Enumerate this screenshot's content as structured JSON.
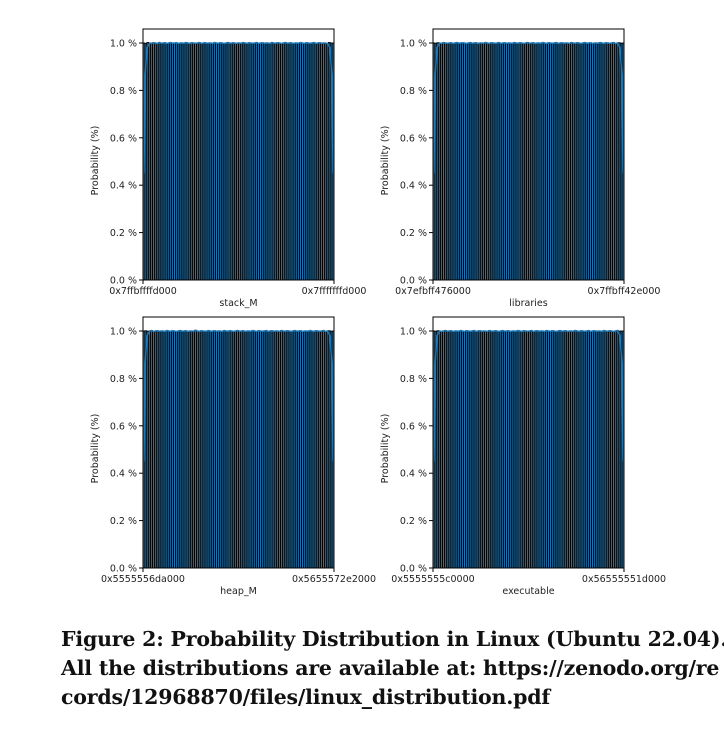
{
  "chart_data": [
    {
      "type": "bar",
      "xlabel": "stack_M",
      "ylabel": "Probability (%)",
      "x_tick_labels": [
        "0x7ffbffffd000",
        "0x7fffffffd000"
      ],
      "y_tick_labels": [
        "0.0 %",
        "0.2 %",
        "0.4 %",
        "0.6 %",
        "0.8 %",
        "1.0 %"
      ],
      "ylim": [
        0,
        1.0
      ],
      "bins": 100,
      "values": [
        1.0,
        0.998,
        1.002,
        1.0,
        0.999,
        1.001,
        1.0,
        0.997,
        1.002,
        0.999,
        1.0,
        1.001,
        0.998,
        1.0,
        1.002,
        0.999,
        1.0,
        1.001,
        0.998,
        1.0,
        1.0,
        0.999,
        1.002,
        1.0,
        0.998,
        1.001,
        1.0,
        0.999,
        1.0,
        1.002,
        0.998,
        1.0,
        1.001,
        0.999,
        1.0,
        1.0,
        0.998,
        1.002,
        1.0,
        0.999,
        1.001,
        1.0,
        0.998,
        1.0,
        1.002,
        0.999,
        1.0,
        1.001,
        0.998,
        1.0,
        1.0,
        0.999,
        1.002,
        1.0,
        0.998,
        1.001,
        1.0,
        0.999,
        1.0,
        1.002,
        0.998,
        1.0,
        1.001,
        0.999,
        1.0,
        1.0,
        0.998,
        1.002,
        1.0,
        0.999,
        1.001,
        1.0,
        0.998,
        1.0,
        1.002,
        0.999,
        1.0,
        1.001,
        0.998,
        1.0,
        1.0,
        0.999,
        1.002,
        1.0,
        0.998,
        1.001,
        1.0,
        0.999,
        1.0,
        1.002,
        0.998,
        1.0,
        1.001,
        0.999,
        1.0,
        1.0,
        0.998,
        1.002,
        1.0,
        1.0
      ],
      "bar_color": "#1f77b4",
      "edge_color": "#000000",
      "line_color": "#1f77b4"
    },
    {
      "type": "bar",
      "xlabel": "libraries",
      "ylabel": "Probability (%)",
      "x_tick_labels": [
        "0x7efbff476000",
        "0x7ffbff42e000"
      ],
      "y_tick_labels": [
        "0.0 %",
        "0.2 %",
        "0.4 %",
        "0.6 %",
        "0.8 %",
        "1.0 %"
      ],
      "ylim": [
        0,
        1.0
      ],
      "bins": 100,
      "values": [
        1.0,
        0.999,
        1.001,
        1.0,
        0.998,
        1.002,
        1.0,
        0.999,
        1.0,
        1.001,
        0.998,
        1.0,
        1.002,
        0.999,
        1.0,
        1.001,
        1.0,
        0.998,
        1.0,
        1.002,
        0.999,
        1.0,
        1.001,
        0.998,
        1.0,
        1.0,
        0.999,
        1.002,
        1.0,
        0.998,
        1.001,
        1.0,
        0.999,
        1.0,
        1.002,
        0.998,
        1.0,
        1.001,
        0.999,
        1.0,
        1.0,
        0.998,
        1.002,
        1.0,
        0.999,
        1.001,
        1.0,
        0.998,
        1.0,
        1.002,
        0.999,
        1.0,
        1.001,
        0.998,
        1.0,
        1.0,
        0.999,
        1.002,
        1.0,
        0.998,
        1.001,
        1.0,
        0.999,
        1.0,
        1.002,
        0.998,
        1.0,
        1.001,
        0.999,
        1.0,
        1.0,
        0.998,
        1.002,
        1.0,
        0.999,
        1.001,
        1.0,
        0.998,
        1.0,
        1.002,
        0.999,
        1.0,
        1.001,
        0.998,
        1.0,
        1.0,
        0.999,
        1.002,
        1.0,
        0.998,
        1.001,
        1.0,
        0.999,
        1.0,
        1.002,
        0.998,
        1.0,
        1.001,
        0.999,
        1.0
      ],
      "bar_color": "#1f77b4",
      "edge_color": "#000000",
      "line_color": "#1f77b4"
    },
    {
      "type": "bar",
      "xlabel": "heap_M",
      "ylabel": "Probability (%)",
      "x_tick_labels": [
        "0x5555556da000",
        "0x5655572e2000"
      ],
      "y_tick_labels": [
        "0.0 %",
        "0.2 %",
        "0.4 %",
        "0.6 %",
        "0.8 %",
        "1.0 %"
      ],
      "ylim": [
        0,
        1.0
      ],
      "bins": 100,
      "values": [
        1.0,
        1.001,
        0.999,
        1.0,
        1.002,
        0.998,
        1.0,
        1.001,
        0.999,
        1.0,
        1.0,
        0.998,
        1.002,
        1.0,
        0.999,
        1.001,
        1.0,
        0.998,
        1.0,
        1.002,
        0.999,
        1.0,
        1.001,
        0.998,
        1.0,
        1.0,
        0.999,
        1.003,
        1.0,
        0.998,
        1.001,
        1.0,
        0.999,
        1.0,
        1.002,
        0.998,
        1.0,
        1.001,
        0.999,
        1.0,
        1.0,
        0.998,
        1.002,
        1.0,
        0.999,
        1.001,
        1.0,
        0.998,
        1.0,
        1.002,
        0.999,
        1.0,
        1.001,
        0.998,
        1.0,
        1.0,
        0.999,
        1.002,
        1.0,
        0.998,
        1.001,
        1.0,
        0.999,
        1.0,
        1.002,
        0.998,
        1.0,
        1.001,
        0.999,
        1.0,
        1.0,
        0.998,
        1.002,
        1.0,
        0.999,
        1.001,
        1.0,
        0.998,
        1.0,
        1.002,
        0.999,
        1.0,
        1.001,
        0.998,
        1.0,
        1.0,
        0.999,
        1.002,
        1.0,
        0.998,
        1.001,
        1.0,
        0.999,
        1.0,
        1.002,
        0.998,
        1.0,
        1.001,
        0.999,
        1.0
      ],
      "bar_color": "#1f77b4",
      "edge_color": "#000000",
      "line_color": "#1f77b4"
    },
    {
      "type": "bar",
      "xlabel": "executable",
      "ylabel": "Probability (%)",
      "x_tick_labels": [
        "0x5555555c0000",
        "0x56555551d000"
      ],
      "y_tick_labels": [
        "0.0 %",
        "0.2 %",
        "0.4 %",
        "0.6 %",
        "0.8 %",
        "1.0 %"
      ],
      "ylim": [
        0,
        1.0
      ],
      "bins": 100,
      "values": [
        1.0,
        0.999,
        1.001,
        1.0,
        0.998,
        1.0,
        1.002,
        0.999,
        1.0,
        1.001,
        0.998,
        1.0,
        1.0,
        0.999,
        1.002,
        1.0,
        0.998,
        1.001,
        1.0,
        0.999,
        1.0,
        1.002,
        0.998,
        1.0,
        1.001,
        0.999,
        1.0,
        1.0,
        0.998,
        1.002,
        1.0,
        0.999,
        1.001,
        1.0,
        0.998,
        1.0,
        1.002,
        0.999,
        1.0,
        1.001,
        0.998,
        1.0,
        1.0,
        0.999,
        1.002,
        1.0,
        0.998,
        1.001,
        1.0,
        0.999,
        1.0,
        1.002,
        0.998,
        1.0,
        1.001,
        0.999,
        1.0,
        1.0,
        0.998,
        1.002,
        1.0,
        0.999,
        1.001,
        1.0,
        0.998,
        1.0,
        1.002,
        0.999,
        1.0,
        1.001,
        0.998,
        1.0,
        1.0,
        0.999,
        1.002,
        1.0,
        0.998,
        1.001,
        1.0,
        0.999,
        1.0,
        1.002,
        0.998,
        1.0,
        1.001,
        0.999,
        1.0,
        1.0,
        0.998,
        1.002,
        1.0,
        0.999,
        1.001,
        1.0,
        0.998,
        1.0,
        1.002,
        0.999,
        1.0,
        1.0
      ],
      "bar_color": "#1f77b4",
      "edge_color": "#000000",
      "line_color": "#1f77b4"
    }
  ],
  "caption": {
    "line1": "Figure 2: Probability Distribution in Linux (Ubuntu 22.04).",
    "line2": "All the distributions are available at: https://zenodo.org/re",
    "line3": "cords/12968870/files/linux_distribution.pdf"
  }
}
